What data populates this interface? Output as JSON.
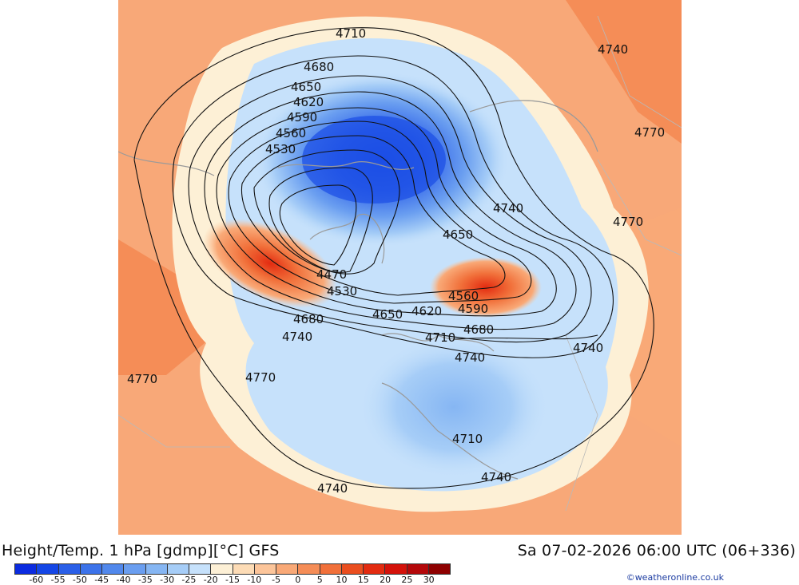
{
  "header": {
    "title": "Height/Temp. 1 hPa [gdmp][°C] GFS",
    "valid_time": "Sa 07-02-2026 06:00 UTC (06+336)"
  },
  "credit": "©weatheronline.co.uk",
  "colorbar": {
    "colors": [
      "#0b2be0",
      "#1446e6",
      "#2a5fe8",
      "#3c73ea",
      "#5188ec",
      "#6a9ef0",
      "#86b6f3",
      "#a6cdf7",
      "#c6e1fb",
      "#fdf0d6",
      "#fddcb6",
      "#fcc59a",
      "#f9a977",
      "#f58d57",
      "#f1703a",
      "#ea4e1f",
      "#e32b10",
      "#d4120a",
      "#b4080a",
      "#8e0000"
    ],
    "labels": [
      "-60",
      "-55",
      "-50",
      "-45",
      "-40",
      "-35",
      "-30",
      "-25",
      "-20",
      "-15",
      "-10",
      "-5",
      "0",
      "5",
      "10",
      "15",
      "20",
      "25",
      "30"
    ]
  },
  "contour_labels": [
    "4710",
    "4740",
    "4680",
    "4650",
    "4620",
    "4590",
    "4560",
    "4530",
    "4770",
    "4740",
    "4770",
    "4650",
    "4470",
    "4530",
    "4560",
    "4590",
    "4680",
    "4650",
    "4620",
    "4710",
    "4740",
    "4740",
    "4680",
    "4740",
    "4770",
    "4770",
    "4710",
    "4740",
    "4740"
  ]
}
